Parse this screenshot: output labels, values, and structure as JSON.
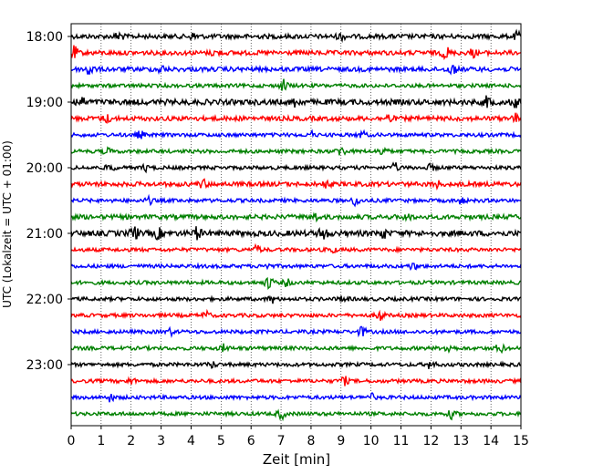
{
  "chart_data": {
    "type": "line",
    "title": "",
    "xlabel": "Zeit  [min]",
    "ylabel": "UTC (Lokalzeit = UTC + 01:00)",
    "xlim": [
      0,
      15
    ],
    "xticks": [
      0,
      1,
      2,
      3,
      4,
      5,
      6,
      7,
      8,
      9,
      10,
      11,
      12,
      13,
      14,
      15
    ],
    "grid_x": true,
    "grid_style": "dotted",
    "y_ticks": [
      {
        "label": "18:00",
        "row": 0
      },
      {
        "label": "19:00",
        "row": 4
      },
      {
        "label": "20:00",
        "row": 8
      },
      {
        "label": "21:00",
        "row": 12
      },
      {
        "label": "22:00",
        "row": 16
      },
      {
        "label": "23:00",
        "row": 20
      }
    ],
    "row_colors": [
      "#000000",
      "#ff0000",
      "#0000ff",
      "#008000"
    ],
    "rows": [
      {
        "start": "18:00",
        "amplitude": 0.25,
        "events": [
          {
            "t": 1.6,
            "a": 0.5
          },
          {
            "t": 4.1,
            "a": 0.35
          },
          {
            "t": 9.0,
            "a": 0.3
          },
          {
            "t": 14.9,
            "a": 0.45
          }
        ]
      },
      {
        "start": "18:15",
        "amplitude": 0.25,
        "events": [
          {
            "t": 0.1,
            "a": 0.6
          },
          {
            "t": 4.8,
            "a": 0.3
          },
          {
            "t": 12.5,
            "a": 0.6
          },
          {
            "t": 13.4,
            "a": 0.35
          }
        ]
      },
      {
        "start": "18:30",
        "amplitude": 0.25,
        "events": [
          {
            "t": 0.6,
            "a": 0.75
          },
          {
            "t": 3.0,
            "a": 0.35
          },
          {
            "t": 12.7,
            "a": 0.55
          }
        ]
      },
      {
        "start": "18:45",
        "amplitude": 0.2,
        "events": [
          {
            "t": 7.1,
            "a": 0.6
          }
        ]
      },
      {
        "start": "19:00",
        "amplitude": 0.3,
        "events": [
          {
            "t": 0.3,
            "a": 0.6
          },
          {
            "t": 7.5,
            "a": 0.45
          },
          {
            "t": 13.9,
            "a": 0.55
          },
          {
            "t": 14.8,
            "a": 0.45
          }
        ]
      },
      {
        "start": "19:15",
        "amplitude": 0.25,
        "events": [
          {
            "t": 1.2,
            "a": 0.35
          },
          {
            "t": 10.6,
            "a": 0.4
          },
          {
            "t": 14.8,
            "a": 0.4
          }
        ]
      },
      {
        "start": "19:30",
        "amplitude": 0.2,
        "events": [
          {
            "t": 2.3,
            "a": 0.35
          },
          {
            "t": 8.0,
            "a": 0.3
          },
          {
            "t": 9.7,
            "a": 0.35
          }
        ]
      },
      {
        "start": "19:45",
        "amplitude": 0.2,
        "events": [
          {
            "t": 1.2,
            "a": 0.3
          },
          {
            "t": 9.0,
            "a": 0.55
          },
          {
            "t": 10.4,
            "a": 0.5
          }
        ]
      },
      {
        "start": "20:00",
        "amplitude": 0.2,
        "events": [
          {
            "t": 1.3,
            "a": 0.35
          },
          {
            "t": 2.5,
            "a": 0.3
          },
          {
            "t": 10.8,
            "a": 0.4
          },
          {
            "t": 12.0,
            "a": 0.3
          }
        ]
      },
      {
        "start": "20:15",
        "amplitude": 0.25,
        "events": [
          {
            "t": 4.4,
            "a": 0.4
          },
          {
            "t": 8.5,
            "a": 0.3
          },
          {
            "t": 12.2,
            "a": 0.3
          }
        ]
      },
      {
        "start": "20:30",
        "amplitude": 0.2,
        "events": [
          {
            "t": 2.6,
            "a": 0.3
          },
          {
            "t": 9.5,
            "a": 0.5
          },
          {
            "t": 13.0,
            "a": 0.3
          }
        ]
      },
      {
        "start": "20:45",
        "amplitude": 0.25,
        "events": [
          {
            "t": 8.1,
            "a": 0.4
          },
          {
            "t": 11.2,
            "a": 0.3
          }
        ]
      },
      {
        "start": "21:00",
        "amplitude": 0.3,
        "events": [
          {
            "t": 2.1,
            "a": 0.75
          },
          {
            "t": 2.9,
            "a": 0.5
          },
          {
            "t": 4.2,
            "a": 0.6
          },
          {
            "t": 8.4,
            "a": 0.8
          },
          {
            "t": 10.4,
            "a": 0.45
          }
        ]
      },
      {
        "start": "21:15",
        "amplitude": 0.2,
        "events": [
          {
            "t": 6.2,
            "a": 0.4
          },
          {
            "t": 8.7,
            "a": 0.3
          }
        ]
      },
      {
        "start": "21:30",
        "amplitude": 0.2,
        "events": [
          {
            "t": 11.4,
            "a": 0.35
          },
          {
            "t": 6.5,
            "a": 0.3
          }
        ]
      },
      {
        "start": "21:45",
        "amplitude": 0.2,
        "events": [
          {
            "t": 6.6,
            "a": 0.65
          },
          {
            "t": 7.2,
            "a": 0.35
          }
        ]
      },
      {
        "start": "22:00",
        "amplitude": 0.2,
        "events": [
          {
            "t": 6.7,
            "a": 0.35
          },
          {
            "t": 9.1,
            "a": 0.3
          }
        ]
      },
      {
        "start": "22:15",
        "amplitude": 0.2,
        "events": [
          {
            "t": 4.5,
            "a": 0.35
          },
          {
            "t": 10.3,
            "a": 0.55
          }
        ]
      },
      {
        "start": "22:30",
        "amplitude": 0.2,
        "events": [
          {
            "t": 9.7,
            "a": 0.5
          },
          {
            "t": 3.3,
            "a": 0.3
          }
        ]
      },
      {
        "start": "22:45",
        "amplitude": 0.2,
        "events": [
          {
            "t": 5.1,
            "a": 0.35
          },
          {
            "t": 12.6,
            "a": 0.55
          },
          {
            "t": 14.3,
            "a": 0.5
          }
        ]
      },
      {
        "start": "23:00",
        "amplitude": 0.2,
        "events": [
          {
            "t": 4.7,
            "a": 0.3
          },
          {
            "t": 12.0,
            "a": 0.45
          }
        ]
      },
      {
        "start": "23:15",
        "amplitude": 0.2,
        "events": [
          {
            "t": 2.0,
            "a": 0.3
          },
          {
            "t": 9.1,
            "a": 0.45
          }
        ]
      },
      {
        "start": "23:30",
        "amplitude": 0.2,
        "events": [
          {
            "t": 1.3,
            "a": 0.35
          },
          {
            "t": 10.0,
            "a": 0.35
          }
        ]
      },
      {
        "start": "23:45",
        "amplitude": 0.2,
        "events": [
          {
            "t": 7.0,
            "a": 0.5
          },
          {
            "t": 12.7,
            "a": 0.45
          }
        ]
      }
    ]
  }
}
